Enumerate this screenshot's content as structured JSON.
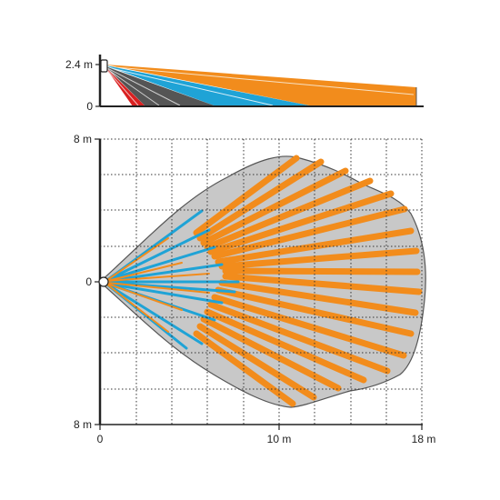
{
  "side_view": {
    "y_labels": {
      "top": "2.4 m",
      "bottom": "0"
    },
    "colors": {
      "far": "#f28c1c",
      "mid": "#1fa3d6",
      "near": "#555555",
      "creep": "#d92020",
      "ground": "#222222"
    }
  },
  "top_view": {
    "y_labels": {
      "top": "8 m",
      "middle": "0",
      "bottom": "8 m"
    },
    "x_labels": {
      "start": "0",
      "middle": "10 m",
      "end": "18 m"
    },
    "colors": {
      "area": "#c8c8c8",
      "long_beam": "#f28c1c",
      "short_beam": "#1fa3d6",
      "grid": "#333333"
    }
  }
}
